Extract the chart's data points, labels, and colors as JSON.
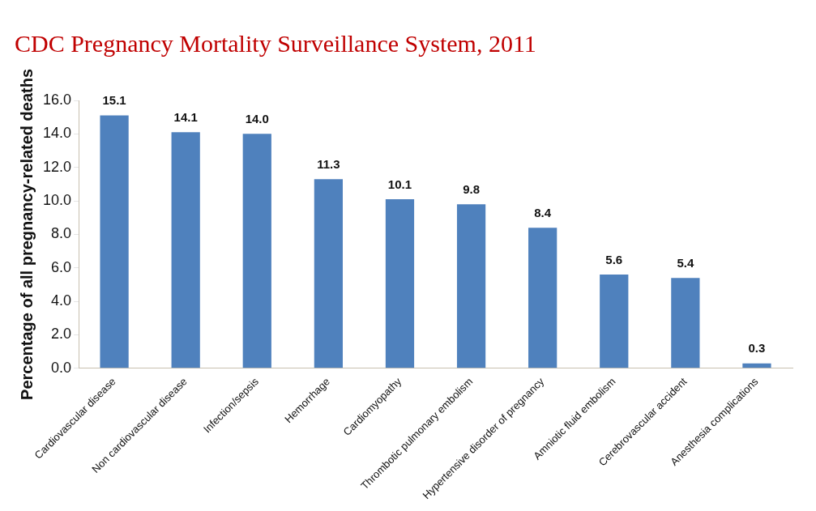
{
  "chart_data": {
    "type": "bar",
    "title": "CDC Pregnancy Mortality Surveillance System, 2011",
    "ylabel": "Percentage of all pregnancy-related deaths",
    "categories": [
      "Cardiovascular disease",
      "Non cardiovascular disease",
      "Infection/sepsis",
      "Hemorrhage",
      "Cardiomyopathy",
      "Thrombotic pulmonary embolism",
      "Hypertensive disorder of pregnancy",
      "Amniotic fluid embolism",
      "Cerebrovascular accident",
      "Anesthesia complications"
    ],
    "values": [
      15.1,
      14.1,
      14.0,
      11.3,
      10.1,
      9.8,
      8.4,
      5.6,
      5.4,
      0.3
    ],
    "value_labels": [
      "15.1",
      "14.1",
      "14.0",
      "11.3",
      "10.1",
      "9.8",
      "8.4",
      "5.6",
      "5.4",
      "0.3"
    ],
    "color": "#4f81bd",
    "ylim": [
      0,
      16
    ],
    "yticks": [
      {
        "value": 0,
        "label": "0.0"
      },
      {
        "value": 2,
        "label": "2.0"
      },
      {
        "value": 4,
        "label": "4.0"
      },
      {
        "value": 6,
        "label": "6.0"
      },
      {
        "value": 8,
        "label": "8.0"
      },
      {
        "value": 10,
        "label": "10.0"
      },
      {
        "value": 12,
        "label": "12.0"
      },
      {
        "value": 14,
        "label": "14.0"
      },
      {
        "value": 16,
        "label": "16.0"
      }
    ],
    "grid": false,
    "legend": false
  }
}
